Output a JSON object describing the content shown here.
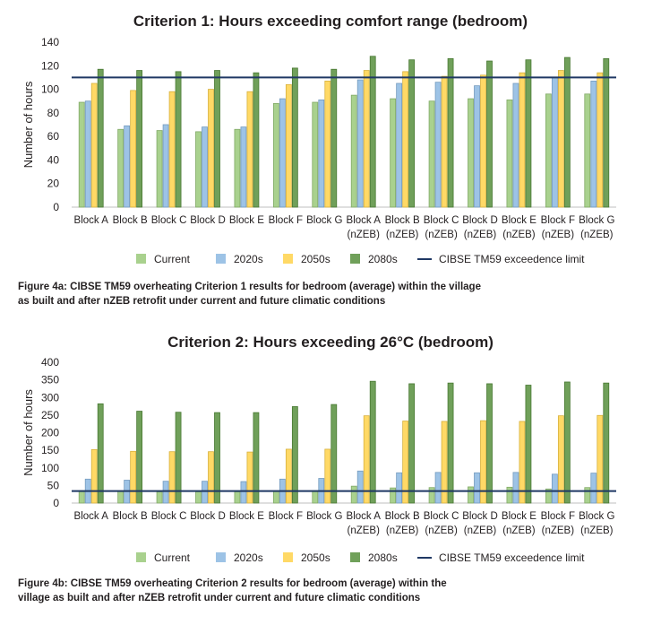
{
  "charts": [
    {
      "title": "Criterion 1: Hours exceeding comfort range (bedroom)",
      "caption_line1": "Figure 4a: CIBSE TM59 overheating Criterion 1 results for bedroom (average) within the village",
      "caption_line2": "as built and after nZEB retrofit under current and future climatic conditions"
    },
    {
      "title": "Criterion 2: Hours exceeding 26°C (bedroom)",
      "caption_line1": "Figure 4b:  CIBSE TM59 overheating Criterion 2 results for bedroom (average) within the",
      "caption_line2": "village as built and after nZEB retrofit under current and future climatic conditions"
    }
  ],
  "chart_data": [
    {
      "type": "bar",
      "title": "Criterion 1: Hours exceeding comfort range (bedroom)",
      "ylabel": "Number of hours",
      "ylim": [
        0,
        140
      ],
      "yticks": [
        0,
        20,
        40,
        60,
        80,
        100,
        120,
        140
      ],
      "grid": false,
      "legend_position": "bottom",
      "categories": [
        [
          "Block A",
          ""
        ],
        [
          "Block B",
          ""
        ],
        [
          "Block C",
          ""
        ],
        [
          "Block D",
          ""
        ],
        [
          "Block E",
          ""
        ],
        [
          "Block F",
          ""
        ],
        [
          "Block G",
          ""
        ],
        [
          "Block A",
          "(nZEB)"
        ],
        [
          "Block B",
          "(nZEB)"
        ],
        [
          "Block C",
          "(nZEB)"
        ],
        [
          "Block D",
          "(nZEB)"
        ],
        [
          "Block E",
          "(nZEB)"
        ],
        [
          "Block F",
          "(nZEB)"
        ],
        [
          "Block G",
          "(nZEB)"
        ]
      ],
      "series": [
        {
          "name": "Current",
          "color": "#a9d18e",
          "values": [
            89,
            66,
            65,
            64,
            66,
            88,
            89,
            95,
            92,
            90,
            92,
            91,
            96,
            96
          ]
        },
        {
          "name": "2020s",
          "color": "#9dc3e6",
          "values": [
            90,
            69,
            70,
            68,
            68,
            92,
            91,
            108,
            105,
            106,
            103,
            105,
            110,
            107
          ]
        },
        {
          "name": "2050s",
          "color": "#ffd966",
          "values": [
            105,
            99,
            98,
            100,
            98,
            104,
            107,
            116,
            115,
            111,
            112,
            114,
            116,
            114
          ]
        },
        {
          "name": "2080s",
          "color": "#70a05a",
          "values": [
            117,
            116,
            115,
            116,
            114,
            118,
            117,
            128,
            125,
            126,
            124,
            125,
            127,
            126
          ]
        }
      ],
      "reference_line": {
        "name": "CIBSE TM59 exceedence limit",
        "value": 110,
        "color": "#1f3864"
      }
    },
    {
      "type": "bar",
      "title": "Criterion 2: Hours exceeding 26°C (bedroom)",
      "ylabel": "Number of hours",
      "ylim": [
        0,
        400
      ],
      "yticks": [
        0,
        50,
        100,
        150,
        200,
        250,
        300,
        350,
        400
      ],
      "grid": false,
      "legend_position": "bottom",
      "categories": [
        [
          "Block A",
          ""
        ],
        [
          "Block B",
          ""
        ],
        [
          "Block C",
          ""
        ],
        [
          "Block D",
          ""
        ],
        [
          "Block E",
          ""
        ],
        [
          "Block F",
          ""
        ],
        [
          "Block G",
          ""
        ],
        [
          "Block A",
          "(nZEB)"
        ],
        [
          "Block B",
          "(nZEB)"
        ],
        [
          "Block C",
          "(nZEB)"
        ],
        [
          "Block D",
          "(nZEB)"
        ],
        [
          "Block E",
          "(nZEB)"
        ],
        [
          "Block F",
          "(nZEB)"
        ],
        [
          "Block G",
          "(nZEB)"
        ]
      ],
      "series": [
        {
          "name": "Current",
          "color": "#a9d18e",
          "values": [
            35,
            33,
            32,
            32,
            32,
            34,
            35,
            48,
            43,
            44,
            46,
            45,
            40,
            44
          ]
        },
        {
          "name": "2020s",
          "color": "#9dc3e6",
          "values": [
            68,
            65,
            62,
            62,
            61,
            68,
            70,
            91,
            86,
            87,
            86,
            87,
            82,
            85
          ]
        },
        {
          "name": "2050s",
          "color": "#ffd966",
          "values": [
            152,
            147,
            146,
            146,
            145,
            153,
            153,
            248,
            233,
            232,
            234,
            232,
            248,
            249
          ]
        },
        {
          "name": "2080s",
          "color": "#70a05a",
          "values": [
            282,
            261,
            258,
            257,
            257,
            274,
            280,
            346,
            339,
            341,
            339,
            335,
            344,
            341
          ]
        }
      ],
      "reference_line": {
        "name": "CIBSE TM59 exceedence limit",
        "value": 34,
        "color": "#1f3864"
      }
    }
  ]
}
